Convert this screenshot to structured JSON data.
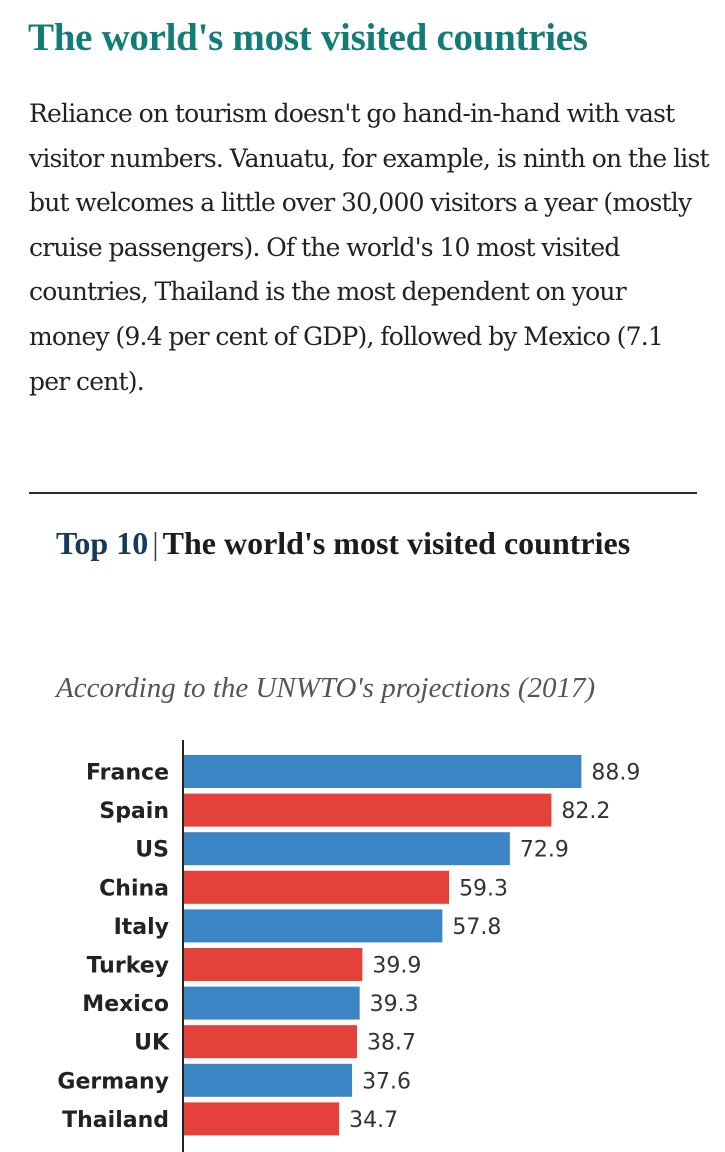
{
  "article": {
    "headline": "The world's most visited countries",
    "body": "Reliance on tourism doesn't go hand-in-hand with vast visitor numbers. Vanuatu, for example, is ninth on the list but welcomes a little over 30,000 visitors a year (mostly cruise passengers). Of the world's 10 most visited countries, Thailand is the most dependent on your money (9.4 per cent of GDP), followed by Mexico (7.1 per cent)."
  },
  "chart_data": {
    "type": "bar",
    "orientation": "horizontal",
    "title_rank": "Top 10",
    "title_separator": "|",
    "title": "The world's most visited countries",
    "subtitle": "According to the UNWTO's projections (2017)",
    "xlabel": "",
    "ylabel": "",
    "categories": [
      "France",
      "Spain",
      "US",
      "China",
      "Italy",
      "Turkey",
      "Mexico",
      "UK",
      "Germany",
      "Thailand"
    ],
    "values": [
      88.9,
      82.2,
      72.9,
      59.3,
      57.8,
      39.9,
      39.3,
      38.7,
      37.6,
      34.7
    ],
    "value_labels": [
      "88.9",
      "82.2",
      "72.9",
      "59.3",
      "57.8",
      "39.9",
      "39.3",
      "38.7",
      "37.6",
      "34.7"
    ],
    "bar_colors": [
      "#3b85c4",
      "#e5413b"
    ],
    "grid": false,
    "legend": "none"
  },
  "colors": {
    "headline": "#127c76",
    "bar_blue": "#3b85c4",
    "bar_red": "#e5413b",
    "axis": "#222222"
  }
}
